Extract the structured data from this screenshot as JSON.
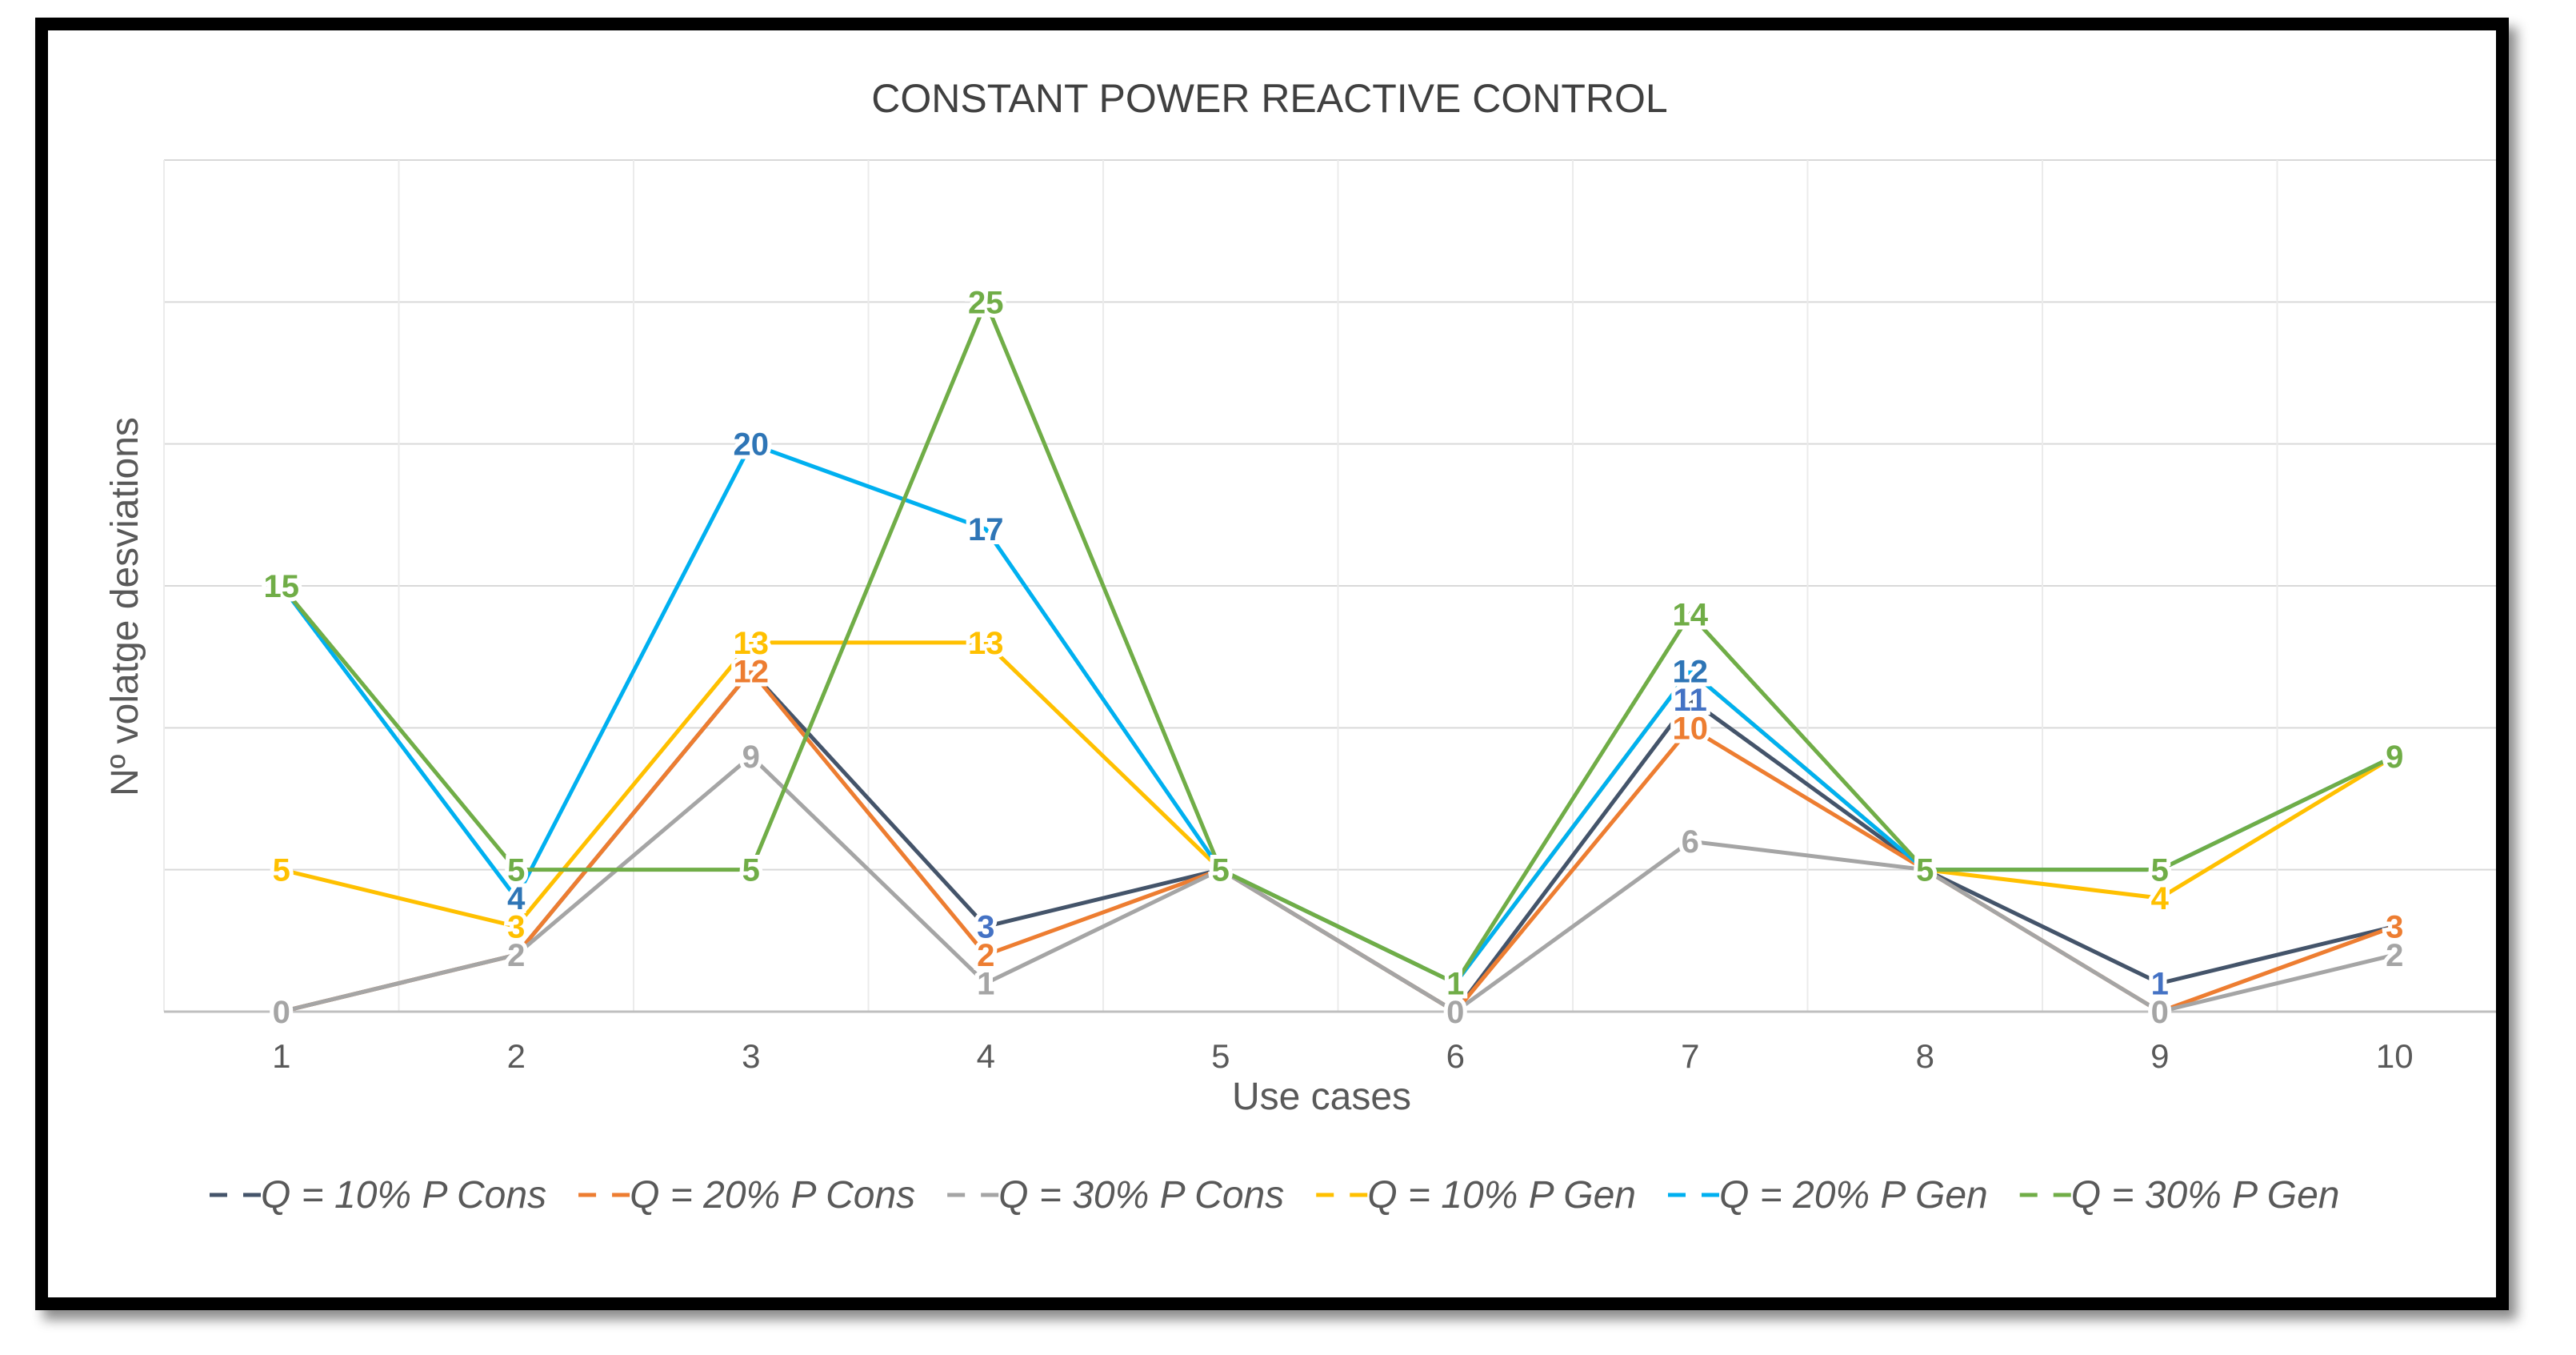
{
  "chart_data": {
    "type": "line",
    "title": "CONSTANT POWER REACTIVE CONTROL",
    "xlabel": "Use cases",
    "ylabel": "Nº volatge desviations",
    "categories": [
      "1",
      "2",
      "3",
      "4",
      "5",
      "6",
      "7",
      "8",
      "9",
      "10"
    ],
    "ylim": [
      0,
      30
    ],
    "y_grid_step": 5,
    "grid": true,
    "legend_position": "bottom",
    "series": [
      {
        "name": "Q = 10% P Cons",
        "color": "#44546A",
        "label_color": "#4472C4",
        "values": [
          0,
          2,
          12,
          3,
          5,
          0,
          11,
          5,
          1,
          3
        ],
        "labels": [
          "",
          "",
          "",
          "3",
          "",
          "",
          "11",
          "",
          "1",
          ""
        ]
      },
      {
        "name": "Q = 20% P Cons",
        "color": "#ED7D31",
        "label_color": "#ED7D31",
        "values": [
          0,
          2,
          12,
          2,
          5,
          0,
          10,
          5,
          0,
          3
        ],
        "labels": [
          "",
          "",
          "12",
          "2",
          "",
          "",
          "10",
          "",
          "",
          "3"
        ]
      },
      {
        "name": "Q = 30% P Cons",
        "color": "#A5A5A5",
        "label_color": "#A5A5A5",
        "values": [
          0,
          2,
          9,
          1,
          5,
          0,
          6,
          5,
          0,
          2
        ],
        "labels": [
          "0",
          "2",
          "9",
          "1",
          "",
          "0",
          "6",
          "",
          "0",
          "2"
        ]
      },
      {
        "name": "Q = 10% P Gen",
        "color": "#FFC000",
        "label_color": "#FFC000",
        "values": [
          5,
          3,
          13,
          13,
          5,
          1,
          12,
          5,
          4,
          9
        ],
        "labels": [
          "5",
          "3",
          "13",
          "13",
          "",
          "",
          "",
          "",
          "4",
          ""
        ]
      },
      {
        "name": "Q = 20% P Gen",
        "color": "#00B0F0",
        "label_color": "#2E75B6",
        "values": [
          15,
          4,
          20,
          17,
          5,
          1,
          12,
          5,
          5,
          9
        ],
        "labels": [
          "",
          "4",
          "20",
          "17",
          "",
          "",
          "12",
          "",
          "",
          ""
        ]
      },
      {
        "name": "Q = 30% P Gen",
        "color": "#70AD47",
        "label_color": "#70AD47",
        "values": [
          15,
          5,
          5,
          25,
          5,
          1,
          14,
          5,
          5,
          9
        ],
        "labels": [
          "15",
          "5",
          "5",
          "25",
          "5",
          "1",
          "14",
          "5",
          "5",
          "9"
        ]
      }
    ]
  }
}
